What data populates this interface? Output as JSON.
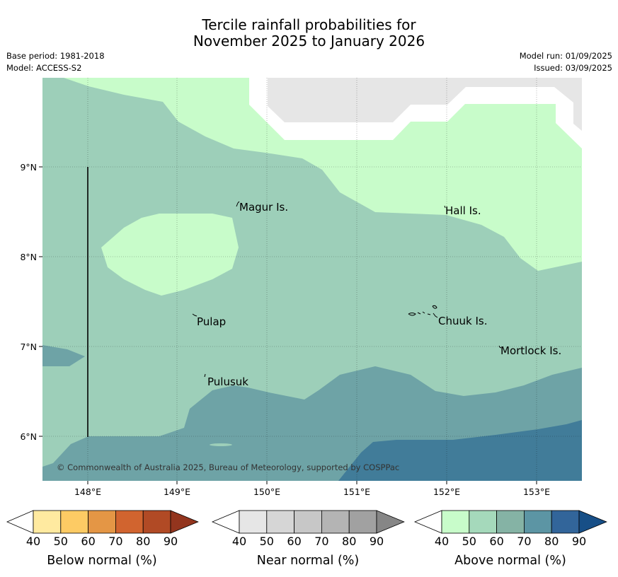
{
  "title_line1": "Tercile rainfall probabilities for",
  "title_line2": "November 2025 to January 2026",
  "base_period": "Base period: 1981-2018",
  "model": "Model: ACCESS-S2",
  "model_run": "Model run: 01/09/2025",
  "issued": "Issued: 03/09/2025",
  "copyright": "© Commonwealth of Australia 2025, Bureau of Meteorology, supported by COSPPac",
  "map": {
    "lon_labels": [
      "148°E",
      "149°E",
      "150°E",
      "151°E",
      "152°E",
      "153°E"
    ],
    "lat_labels": [
      "9°N",
      "8°N",
      "7°N",
      "6°N"
    ],
    "places": [
      "Magur Is.",
      "Hall Is.",
      "Pulap",
      "Chuuk Is.",
      "Mortlock Is.",
      "Pulusuk"
    ],
    "colors": {
      "no_data": "#e6e6e6",
      "above_40_50": "#c8fcca",
      "above_50_60": "#9dcfb9",
      "above_60_70": "#6ea3a6",
      "above_70_80": "#417c99",
      "background": "#ffffff"
    }
  },
  "colorbars": [
    {
      "label": "Below normal (%)",
      "ticks": [
        "40",
        "50",
        "60",
        "70",
        "80",
        "90"
      ],
      "colors": [
        "#ffffff",
        "#ffeaa0",
        "#fdcb64",
        "#e49645",
        "#d1642f",
        "#b14a25",
        "#93351e"
      ]
    },
    {
      "label": "Near normal (%)",
      "ticks": [
        "40",
        "50",
        "60",
        "70",
        "80",
        "90"
      ],
      "colors": [
        "#ffffff",
        "#e6e6e6",
        "#d6d6d6",
        "#c7c7c7",
        "#b4b4b4",
        "#a1a1a1",
        "#868686"
      ]
    },
    {
      "label": "Above normal (%)",
      "ticks": [
        "40",
        "50",
        "60",
        "70",
        "80",
        "90"
      ],
      "colors": [
        "#ffffff",
        "#c8fcca",
        "#a5d9bb",
        "#85b3a5",
        "#5c95a4",
        "#32659a",
        "#174f87"
      ]
    }
  ]
}
